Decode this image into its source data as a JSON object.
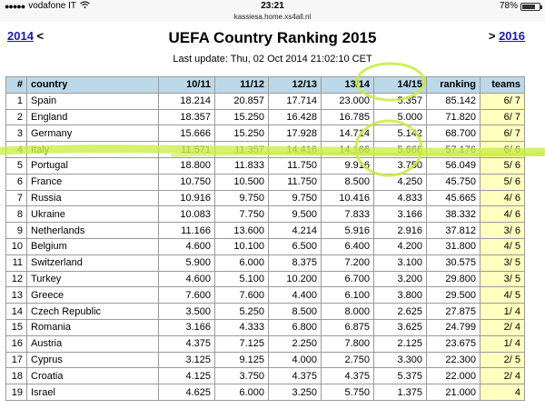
{
  "status_bar": {
    "carrier": "vodafone IT",
    "time": "23:21",
    "battery": "78%",
    "battery_level": 0.78
  },
  "url": "kassiesa.home.xs4all.nl",
  "nav": {
    "prev_year": "2014",
    "prev_arrow": "<",
    "next_arrow": ">",
    "next_year": "2016"
  },
  "title": "UEFA Country Ranking 2015",
  "last_update": "Last update: Thu, 02 Oct 2014 21:02:10 CET",
  "table": {
    "headers": [
      "#",
      "country",
      "10/11",
      "11/12",
      "12/13",
      "13/14",
      "14/15",
      "ranking",
      "teams"
    ],
    "rows": [
      [
        "1",
        "Spain",
        "18.214",
        "20.857",
        "17.714",
        "23.000",
        "5.357",
        "85.142",
        "6/ 7"
      ],
      [
        "2",
        "England",
        "18.357",
        "15.250",
        "16.428",
        "16.785",
        "5.000",
        "71.820",
        "6/ 7"
      ],
      [
        "3",
        "Germany",
        "15.666",
        "15.250",
        "17.928",
        "14.714",
        "5.142",
        "68.700",
        "6/ 7"
      ],
      [
        "4",
        "Italy",
        "11.571",
        "11.357",
        "14.416",
        "14.166",
        "5.666",
        "57.176",
        "6/ 6"
      ],
      [
        "5",
        "Portugal",
        "18.800",
        "11.833",
        "11.750",
        "9.916",
        "3.750",
        "56.049",
        "5/ 6"
      ],
      [
        "6",
        "France",
        "10.750",
        "10.500",
        "11.750",
        "8.500",
        "4.250",
        "45.750",
        "5/ 6"
      ],
      [
        "7",
        "Russia",
        "10.916",
        "9.750",
        "9.750",
        "10.416",
        "4.833",
        "45.665",
        "4/ 6"
      ],
      [
        "8",
        "Ukraine",
        "10.083",
        "7.750",
        "9.500",
        "7.833",
        "3.166",
        "38.332",
        "4/ 6"
      ],
      [
        "9",
        "Netherlands",
        "11.166",
        "13.600",
        "4.214",
        "5.916",
        "2.916",
        "37.812",
        "3/ 6"
      ],
      [
        "10",
        "Belgium",
        "4.600",
        "10.100",
        "6.500",
        "6.400",
        "4.200",
        "31.800",
        "4/ 5"
      ],
      [
        "11",
        "Switzerland",
        "5.900",
        "6.000",
        "8.375",
        "7.200",
        "3.100",
        "30.575",
        "3/ 5"
      ],
      [
        "12",
        "Turkey",
        "4.600",
        "5.100",
        "10.200",
        "6.700",
        "3.200",
        "29.800",
        "3/ 5"
      ],
      [
        "13",
        "Greece",
        "7.600",
        "7.600",
        "4.400",
        "6.100",
        "3.800",
        "29.500",
        "4/ 5"
      ],
      [
        "14",
        "Czech Republic",
        "3.500",
        "5.250",
        "8.500",
        "8.000",
        "2.625",
        "27.875",
        "1/ 4"
      ],
      [
        "15",
        "Romania",
        "3.166",
        "4.333",
        "6.800",
        "6.875",
        "3.625",
        "24.799",
        "2/ 4"
      ],
      [
        "16",
        "Austria",
        "4.375",
        "7.125",
        "2.250",
        "7.800",
        "2.125",
        "23.675",
        "1/ 4"
      ],
      [
        "17",
        "Cyprus",
        "3.125",
        "9.125",
        "4.000",
        "2.750",
        "3.300",
        "22.300",
        "2/ 5"
      ],
      [
        "18",
        "Croatia",
        "4.125",
        "3.750",
        "4.375",
        "4.375",
        "5.375",
        "22.000",
        "2/ 4"
      ],
      [
        "19",
        "Israel",
        "4.625",
        "6.000",
        "3.250",
        "5.750",
        "1.375",
        "21.000",
        "4"
      ]
    ]
  },
  "colors": {
    "header_bg": "#bcd9ea",
    "teams_bg": "#ffffc0",
    "link": "#1a1aa6",
    "highlighter": "#c8ec3c"
  }
}
